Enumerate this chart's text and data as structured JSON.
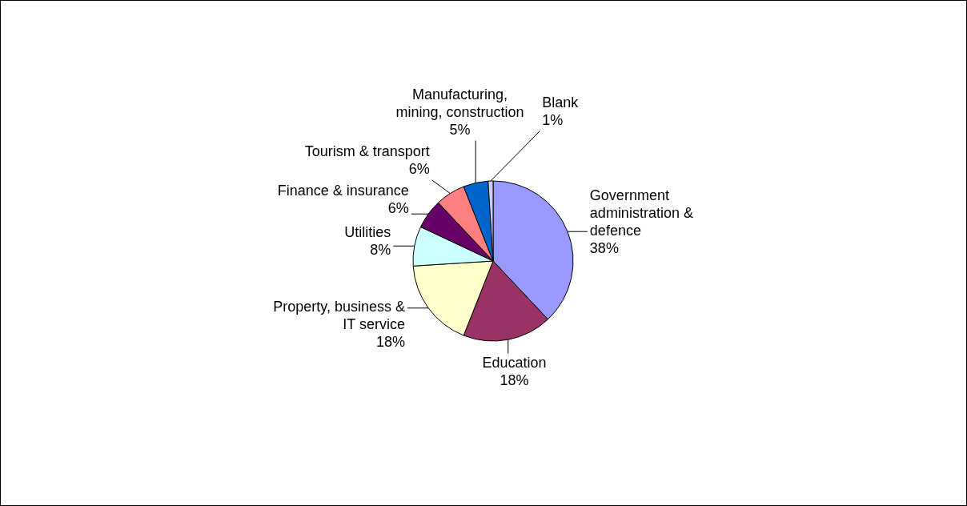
{
  "chart_data": {
    "type": "pie",
    "categories": [
      "Government administration & defence",
      "Education",
      "Property, business & IT service",
      "Utilities",
      "Finance & insurance",
      "Tourism & transport",
      "Manufacturing, mining, construction",
      "Blank"
    ],
    "values": [
      38,
      18,
      18,
      8,
      6,
      6,
      5,
      1
    ],
    "value_labels": [
      "38%",
      "18%",
      "18%",
      "8%",
      "6%",
      "6%",
      "5%",
      "1%"
    ],
    "colors": [
      "#9999ff",
      "#993366",
      "#ffffcc",
      "#ccffff",
      "#660066",
      "#ff8080",
      "#0066cc",
      "#ccccff"
    ],
    "legend": false
  }
}
